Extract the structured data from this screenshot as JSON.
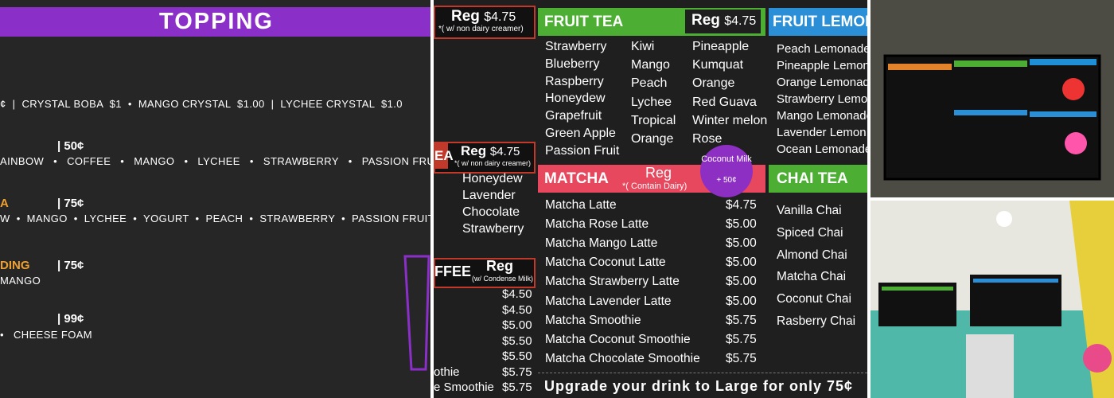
{
  "topping_board": {
    "title": "TOPPING",
    "lines": [
      {
        "heading": null,
        "price": null,
        "items": "¢  |  CRYSTAL BOBA  $1  •  MANGO CRYSTAL  $1.00  |  LYCHEE CRYSTAL  $1.0"
      },
      {
        "heading": null,
        "price": "| 50¢",
        "items": "AINBOW   •   COFFEE   •   MANGO   •   LYCHEE   •   STRAWBERRY   •   PASSION FRU"
      },
      {
        "heading": "A",
        "price": "| 75¢",
        "items": "W  •  MANGO  •  LYCHEE  •  YOGURT  •  PEACH  •  STRAWBERRY  •  PASSION FRUIT"
      },
      {
        "heading": "DING",
        "price": "| 75¢",
        "items": "MANGO"
      },
      {
        "heading": null,
        "price": "| 99¢",
        "items": "•   CHEESE FOAM"
      }
    ]
  },
  "menu_board": {
    "milk_tea": {
      "reg": "Reg",
      "price": "$4.75",
      "note": "*( w/ non dairy creamer)"
    },
    "other_tea": {
      "title": "EA",
      "reg": "Reg",
      "price": "$4.75",
      "note": "*( w/ non dairy creamer)",
      "items": [
        "Honeydew",
        "Lavender",
        "Chocolate",
        "Strawberry"
      ]
    },
    "coffee": {
      "title": "FFEE",
      "reg": "Reg",
      "note": "(w/ Condense Milk)",
      "items": [
        {
          "name": "",
          "price": "$4.50"
        },
        {
          "name": "",
          "price": "$4.50"
        },
        {
          "name": "",
          "price": "$5.00"
        },
        {
          "name": "",
          "price": "$5.50"
        },
        {
          "name": "",
          "price": "$5.50"
        },
        {
          "name": "othie",
          "price": "$5.75"
        },
        {
          "name": "e Smoothie",
          "price": "$5.75"
        }
      ]
    },
    "fruit_tea": {
      "title": "FRUIT TEA",
      "reg": "Reg",
      "price": "$4.75",
      "columns": [
        [
          "Strawberry",
          "Blueberry",
          "Raspberry",
          "Honeydew",
          "Grapefruit",
          "Green Apple",
          "Passion Fruit"
        ],
        [
          "Kiwi",
          "Mango",
          "Peach",
          "Lychee",
          "Tropical",
          "Orange"
        ],
        [
          "Pineapple",
          "Kumquat",
          "Orange",
          "Red Guava",
          "Winter melon",
          "Rose"
        ]
      ]
    },
    "fruit_lemonade": {
      "title": "FRUIT LEMON",
      "items": [
        "Peach Lemonade",
        "Pineapple Lemon",
        "Orange Lemonade",
        "Strawberry Lemo",
        "Mango Lemonade",
        "Lavender Lemon",
        "Ocean Lemonade"
      ]
    },
    "matcha": {
      "title": "MATCHA",
      "reg": "Reg",
      "note": "*( Contain Dairy)",
      "badge": "Coconut Milk",
      "badge_price": "+ 50¢",
      "items": [
        {
          "name": "Matcha Latte",
          "price": "$4.75"
        },
        {
          "name": "Matcha Rose Latte",
          "price": "$5.00"
        },
        {
          "name": "Matcha Mango Latte",
          "price": "$5.00"
        },
        {
          "name": "Matcha Coconut Latte",
          "price": "$5.00"
        },
        {
          "name": "Matcha Strawberry Latte",
          "price": "$5.00"
        },
        {
          "name": "Matcha Lavender Latte",
          "price": "$5.00"
        },
        {
          "name": "Matcha Smoothie",
          "price": "$5.75"
        },
        {
          "name": "Matcha Coconut Smoothie",
          "price": "$5.75"
        },
        {
          "name": "Matcha Chocolate Smoothie",
          "price": "$5.75"
        }
      ]
    },
    "chai_tea": {
      "title": "CHAI TEA",
      "items": [
        "Vanilla Chai",
        "Spiced Chai",
        "Almond Chai",
        "Matcha Chai",
        "Coconut Chai",
        "Rasberry Chai"
      ]
    },
    "footer": "Upgrade your drink to Large for only 75¢"
  }
}
